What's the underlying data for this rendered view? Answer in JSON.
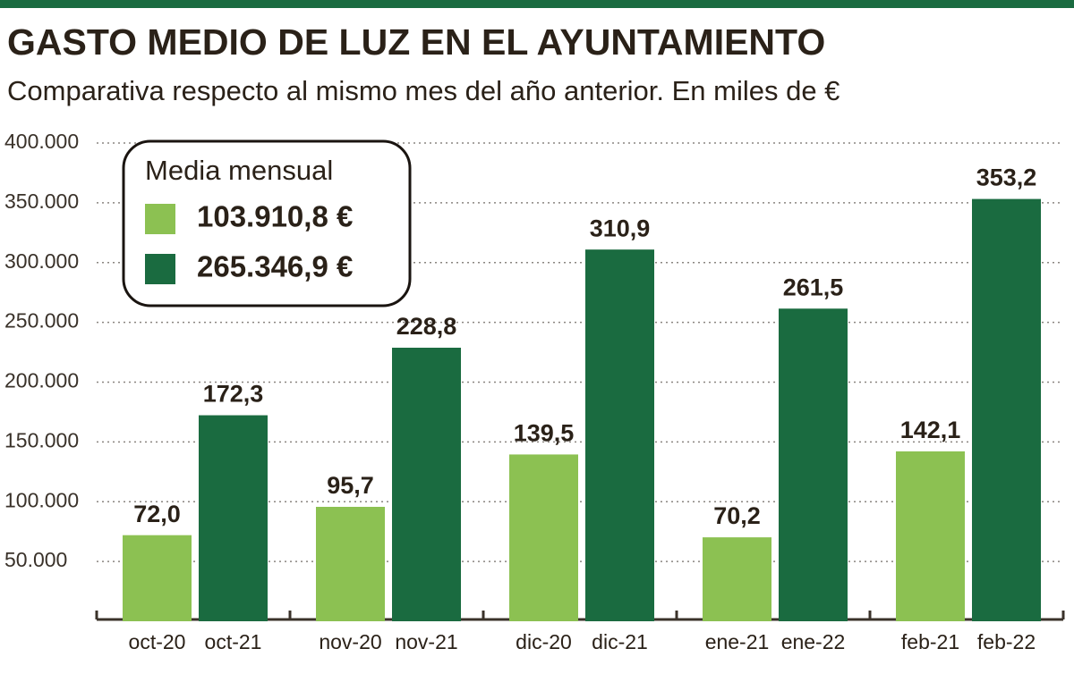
{
  "chart_data": {
    "type": "bar",
    "title": "GASTO MEDIO DE LUZ EN EL AYUNTAMIENTO",
    "subtitle": "Comparativa respecto al mismo mes del año anterior. En miles de €",
    "legend_title": "Media mensual",
    "series": [
      {
        "name": "103.910,8 €",
        "color": "#8cc152",
        "labels": [
          "oct-20",
          "nov-20",
          "dic-20",
          "ene-21",
          "feb-21"
        ],
        "values": [
          72000,
          95700,
          139500,
          70200,
          142100
        ],
        "value_labels": [
          "72,0",
          "95,7",
          "139,5",
          "70,2",
          "142,1"
        ]
      },
      {
        "name": "265.346,9 €",
        "color": "#1a6b40",
        "labels": [
          "oct-21",
          "nov-21",
          "dic-21",
          "ene-22",
          "feb-22"
        ],
        "values": [
          172300,
          228800,
          310900,
          261500,
          353200
        ],
        "value_labels": [
          "172,3",
          "228,8",
          "310,9",
          "261,5",
          "353,2"
        ]
      }
    ],
    "ylim": [
      0,
      400000
    ],
    "yticks": [
      {
        "value": 50000,
        "label": "50.000"
      },
      {
        "value": 100000,
        "label": "100.000"
      },
      {
        "value": 150000,
        "label": "150.000"
      },
      {
        "value": 200000,
        "label": "200.000"
      },
      {
        "value": 250000,
        "label": "250.000"
      },
      {
        "value": 300000,
        "label": "300.000"
      },
      {
        "value": 350000,
        "label": "350.000"
      },
      {
        "value": 400000,
        "label": "400.000"
      }
    ],
    "grid": true
  }
}
